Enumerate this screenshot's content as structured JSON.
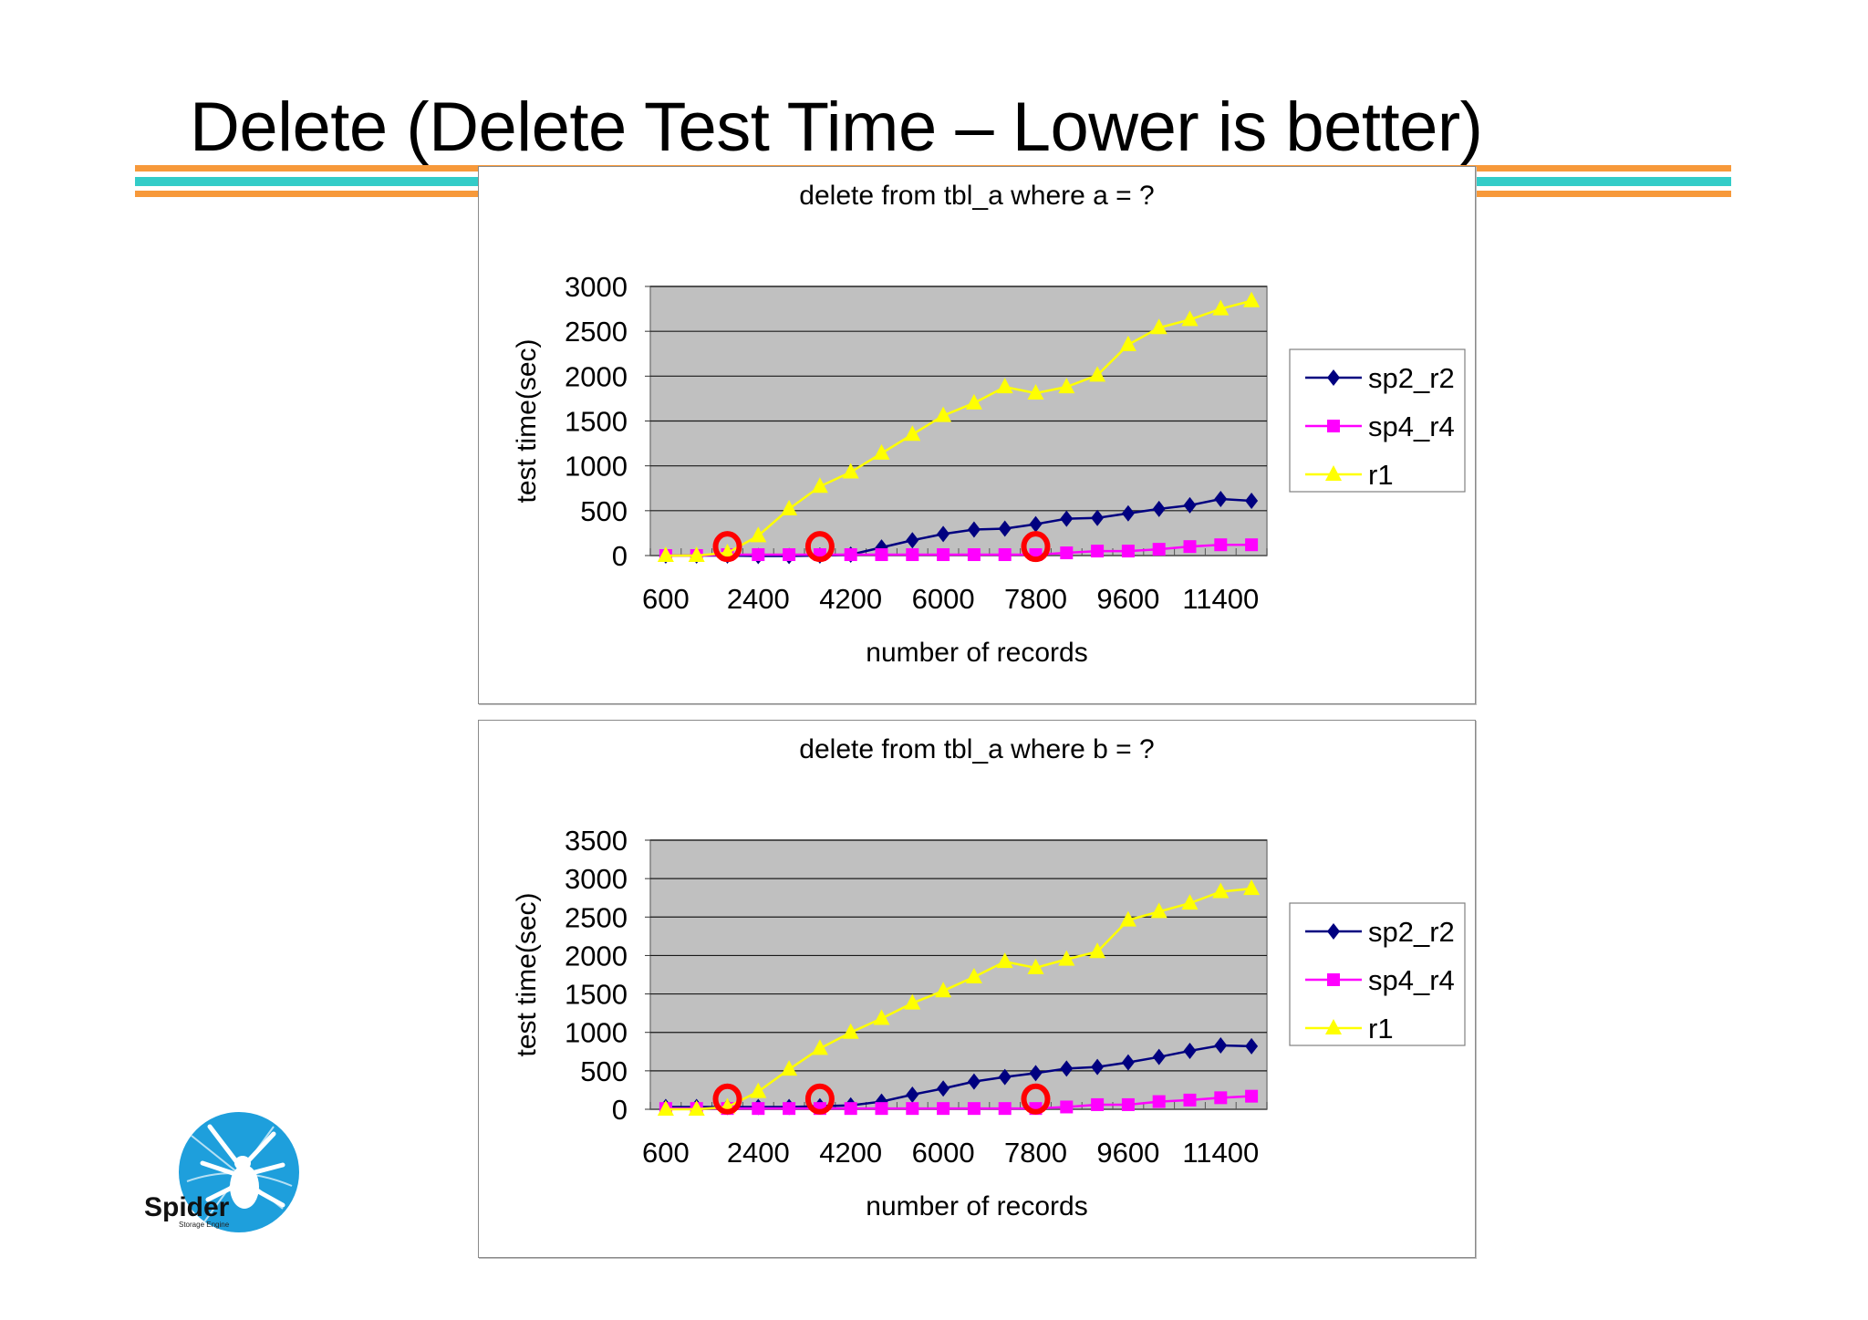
{
  "slide": {
    "title": "Delete (Delete Test Time – Lower is better)",
    "stripe_colors": [
      "#f7993a",
      "#33ccc8",
      "#f7993a"
    ],
    "logo": {
      "name": "spider-logo",
      "text": "Spider",
      "subtext": "Storage Engine",
      "color": "#1e9fdc"
    }
  },
  "chart_data": [
    {
      "type": "line",
      "title": "delete from tbl_a where a = ?",
      "xlabel": "number of records",
      "ylabel": "test time(sec)",
      "x": [
        600,
        1200,
        1800,
        2400,
        3000,
        3600,
        4200,
        4800,
        5400,
        6000,
        6600,
        7200,
        7800,
        8400,
        9000,
        9600,
        10200,
        10800,
        11400,
        12000
      ],
      "x_tick_labels": [
        "600",
        "2400",
        "4200",
        "6000",
        "7800",
        "9600",
        "11400"
      ],
      "y_tick_labels": [
        "0",
        "500",
        "1000",
        "1500",
        "2000",
        "2500",
        "3000"
      ],
      "ylim": [
        0,
        3000
      ],
      "grid": true,
      "legend_position": "right",
      "background": "#c0c0c0",
      "series": [
        {
          "name": "sp2_r2",
          "color": "#000080",
          "marker": "diamond",
          "values": [
            0,
            0,
            0,
            -5,
            -5,
            0,
            10,
            90,
            170,
            240,
            290,
            300,
            350,
            410,
            420,
            470,
            520,
            560,
            630,
            610
          ]
        },
        {
          "name": "sp4_r4",
          "color": "#ff00ff",
          "marker": "square",
          "values": [
            0,
            0,
            10,
            10,
            10,
            10,
            10,
            10,
            10,
            10,
            10,
            10,
            10,
            30,
            50,
            50,
            70,
            100,
            120,
            120
          ]
        },
        {
          "name": "r1",
          "color": "#ffff00",
          "marker": "triangle",
          "values": [
            0,
            0,
            30,
            220,
            520,
            770,
            930,
            1140,
            1350,
            1560,
            1700,
            1880,
            1810,
            1880,
            2010,
            2350,
            2540,
            2630,
            2750,
            2840
          ]
        }
      ],
      "annotations": [
        {
          "type": "red-circle",
          "x": 1800,
          "y": 80
        },
        {
          "type": "red-circle",
          "x": 3600,
          "y": 80
        },
        {
          "type": "red-circle",
          "x": 7800,
          "y": 80
        }
      ]
    },
    {
      "type": "line",
      "title": "delete from tbl_a where b = ?",
      "xlabel": "number of records",
      "ylabel": "test time(sec)",
      "x": [
        600,
        1200,
        1800,
        2400,
        3000,
        3600,
        4200,
        4800,
        5400,
        6000,
        6600,
        7200,
        7800,
        8400,
        9000,
        9600,
        10200,
        10800,
        11400,
        12000
      ],
      "x_tick_labels": [
        "600",
        "2400",
        "4200",
        "6000",
        "7800",
        "9600",
        "11400"
      ],
      "y_tick_labels": [
        "0",
        "500",
        "1000",
        "1500",
        "2000",
        "2500",
        "3000",
        "3500"
      ],
      "ylim": [
        0,
        3500
      ],
      "grid": true,
      "legend_position": "right",
      "background": "#c0c0c0",
      "series": [
        {
          "name": "sp2_r2",
          "color": "#000080",
          "marker": "diamond",
          "values": [
            30,
            30,
            30,
            30,
            30,
            40,
            50,
            100,
            190,
            270,
            360,
            420,
            470,
            530,
            550,
            610,
            680,
            760,
            830,
            820
          ]
        },
        {
          "name": "sp4_r4",
          "color": "#ff00ff",
          "marker": "square",
          "values": [
            10,
            10,
            10,
            10,
            10,
            10,
            10,
            10,
            10,
            10,
            10,
            10,
            10,
            30,
            60,
            60,
            100,
            120,
            150,
            170
          ]
        },
        {
          "name": "r1",
          "color": "#ffff00",
          "marker": "triangle",
          "values": [
            0,
            0,
            30,
            230,
            520,
            790,
            1000,
            1180,
            1380,
            1540,
            1720,
            1920,
            1840,
            1950,
            2050,
            2460,
            2570,
            2680,
            2830,
            2870
          ]
        }
      ],
      "annotations": [
        {
          "type": "red-circle",
          "x": 1800,
          "y": 110
        },
        {
          "type": "red-circle",
          "x": 3600,
          "y": 110
        },
        {
          "type": "red-circle",
          "x": 7800,
          "y": 110
        }
      ]
    }
  ]
}
